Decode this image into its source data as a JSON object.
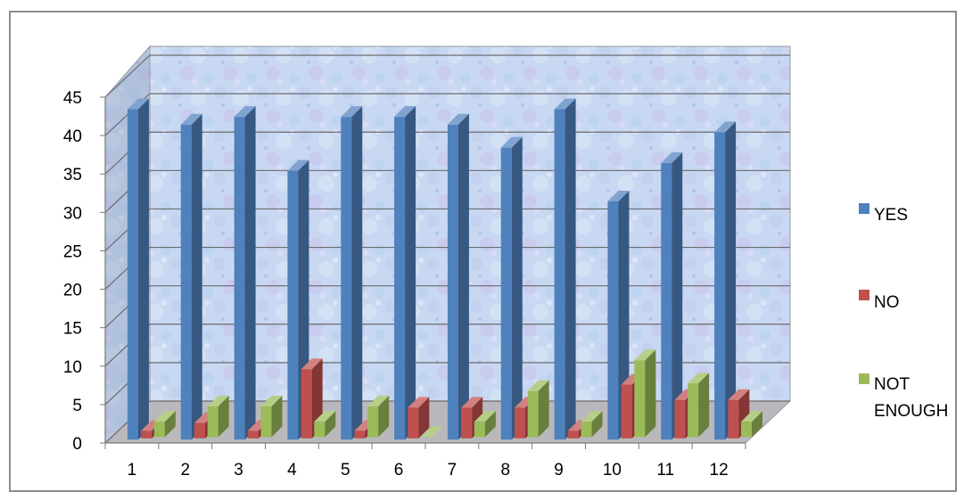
{
  "chart_data": {
    "type": "bar",
    "categories": [
      "1",
      "2",
      "3",
      "4",
      "5",
      "6",
      "7",
      "8",
      "9",
      "10",
      "11",
      "12"
    ],
    "series": [
      {
        "name": "YES",
        "color": "#4F81BD",
        "values": [
          43,
          41,
          42,
          35,
          42,
          42,
          41,
          38,
          43,
          31,
          36,
          40
        ]
      },
      {
        "name": "NO",
        "color": "#C0504D",
        "values": [
          1,
          2,
          1,
          9,
          1,
          4,
          4,
          4,
          1,
          7,
          5,
          5
        ]
      },
      {
        "name": "NOT ENOUGH",
        "color": "#9BBB59",
        "values": [
          2,
          4,
          4,
          2,
          4,
          0,
          2,
          6,
          2,
          10,
          7,
          2
        ]
      }
    ],
    "legend_labels": [
      "YES",
      "NO",
      "NOT",
      "ENOUGH"
    ],
    "y_ticks": [
      "0",
      "5",
      "10",
      "15",
      "20",
      "25",
      "30",
      "35",
      "40",
      "45"
    ],
    "ylim": [
      0,
      45
    ],
    "grid": true,
    "legend_position": "right",
    "style": "3d-clustered-column"
  }
}
